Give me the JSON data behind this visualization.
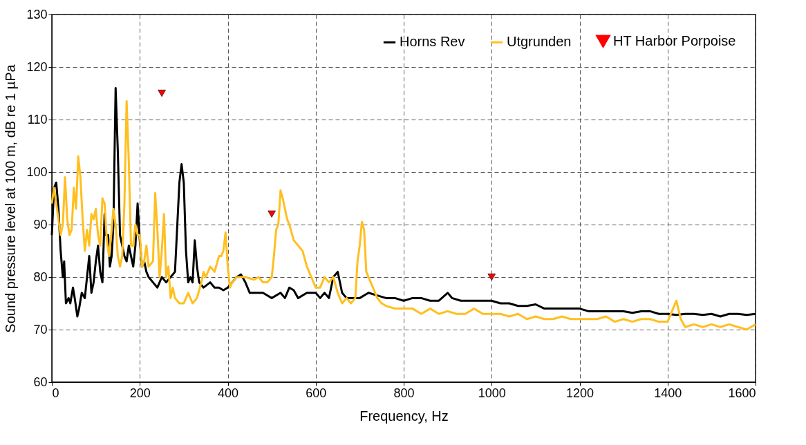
{
  "chart_data": {
    "type": "line",
    "xlabel": "Frequency, Hz",
    "ylabel": "Sound pressure level at 100 m, dB re 1 µPa",
    "xlim": [
      0,
      1600
    ],
    "xticks": [
      0,
      200,
      400,
      600,
      800,
      1000,
      1200,
      1400,
      1600
    ],
    "ylim": [
      60,
      130
    ],
    "yticks": [
      60,
      70,
      80,
      90,
      100,
      110,
      120,
      130
    ],
    "grid": true,
    "legend": "top right",
    "line_style": "solid",
    "series": [
      {
        "name": "Horns Rev",
        "color": "#000000",
        "x": [
          0,
          5,
          10,
          15,
          20,
          25,
          28,
          32,
          38,
          42,
          48,
          52,
          58,
          62,
          68,
          75,
          80,
          85,
          90,
          95,
          100,
          105,
          110,
          115,
          120,
          123,
          128,
          132,
          136,
          140,
          145,
          150,
          155,
          160,
          165,
          170,
          175,
          180,
          185,
          190,
          195,
          200,
          205,
          210,
          215,
          220,
          230,
          240,
          250,
          260,
          270,
          280,
          290,
          295,
          300,
          305,
          310,
          315,
          320,
          325,
          330,
          335,
          345,
          360,
          370,
          380,
          390,
          400,
          410,
          420,
          430,
          440,
          450,
          460,
          480,
          500,
          520,
          530,
          540,
          550,
          560,
          580,
          600,
          610,
          620,
          630,
          640,
          650,
          660,
          670,
          690,
          700,
          720,
          740,
          760,
          780,
          800,
          820,
          840,
          860,
          880,
          900,
          910,
          930,
          950,
          970,
          1000,
          1020,
          1040,
          1060,
          1080,
          1100,
          1120,
          1140,
          1160,
          1180,
          1200,
          1220,
          1240,
          1260,
          1280,
          1300,
          1320,
          1340,
          1360,
          1380,
          1400,
          1420,
          1440,
          1460,
          1480,
          1500,
          1520,
          1540,
          1560,
          1580,
          1600
        ],
        "values": [
          88,
          97,
          98,
          93,
          85,
          80,
          83,
          75,
          76,
          75,
          78,
          76,
          72.5,
          74,
          77,
          76,
          80,
          84,
          77,
          79,
          83,
          86,
          81,
          79,
          92,
          88,
          88,
          82,
          84,
          90,
          116,
          104,
          88,
          86,
          84,
          83,
          86,
          84,
          82,
          86,
          94,
          87,
          82,
          83,
          81,
          80,
          79,
          78,
          80,
          79,
          80,
          81,
          98,
          101.5,
          98,
          85,
          79,
          80,
          79,
          87,
          82,
          79,
          78,
          79,
          78,
          78,
          77.5,
          78,
          79,
          80,
          80.5,
          79,
          77,
          77,
          77,
          76,
          77,
          76,
          78,
          77.5,
          76,
          77,
          77,
          76,
          77,
          76,
          80,
          81,
          77,
          76,
          76,
          76,
          77,
          76.5,
          76,
          76,
          75.5,
          76,
          76,
          75.5,
          75.5,
          77,
          76,
          75.5,
          75.5,
          75.5,
          75.5,
          75,
          75,
          74.5,
          74.5,
          74.8,
          74,
          74,
          74,
          74,
          74,
          73.5,
          73.5,
          73.5,
          73.5,
          73.5,
          73.2,
          73.5,
          73.5,
          73,
          73,
          72.8,
          73,
          73,
          72.8,
          73,
          72.5,
          73,
          73,
          72.8,
          73
        ]
      },
      {
        "name": "Utgrunden",
        "color": "#ffbf1f",
        "x": [
          0,
          5,
          10,
          15,
          20,
          25,
          30,
          35,
          40,
          45,
          50,
          55,
          60,
          65,
          70,
          75,
          80,
          85,
          90,
          95,
          100,
          105,
          110,
          115,
          120,
          125,
          130,
          135,
          140,
          145,
          150,
          155,
          160,
          165,
          170,
          175,
          180,
          185,
          190,
          195,
          200,
          205,
          210,
          215,
          220,
          230,
          235,
          240,
          245,
          250,
          255,
          260,
          265,
          270,
          275,
          280,
          290,
          300,
          310,
          320,
          330,
          340,
          345,
          350,
          360,
          370,
          380,
          385,
          390,
          395,
          400,
          405,
          410,
          420,
          440,
          460,
          470,
          480,
          490,
          500,
          505,
          510,
          515,
          520,
          525,
          530,
          535,
          540,
          550,
          560,
          570,
          580,
          590,
          600,
          610,
          620,
          630,
          640,
          650,
          660,
          670,
          680,
          690,
          695,
          700,
          705,
          710,
          715,
          720,
          730,
          740,
          750,
          760,
          780,
          800,
          820,
          840,
          860,
          880,
          900,
          920,
          940,
          960,
          980,
          1000,
          1020,
          1040,
          1060,
          1080,
          1100,
          1120,
          1140,
          1160,
          1180,
          1200,
          1220,
          1240,
          1260,
          1280,
          1300,
          1320,
          1340,
          1360,
          1380,
          1400,
          1420,
          1430,
          1440,
          1460,
          1480,
          1500,
          1520,
          1540,
          1560,
          1580,
          1600
        ],
        "values": [
          94,
          97,
          94,
          91,
          88,
          90,
          99,
          91,
          88,
          89,
          97,
          93,
          103,
          99,
          91,
          85,
          89,
          86,
          92,
          91,
          93,
          88,
          86,
          95,
          94,
          87,
          84,
          88,
          93,
          90,
          84,
          82,
          84,
          94,
          113.5,
          102,
          86,
          86,
          90,
          88,
          88,
          82,
          83,
          86,
          82,
          83,
          96,
          89,
          80,
          85,
          92,
          80,
          82,
          76,
          78,
          76,
          75,
          75,
          77,
          75,
          76,
          79,
          81,
          80,
          82,
          81,
          84,
          84,
          85,
          88.5,
          82,
          78,
          79,
          80,
          80,
          79.5,
          80,
          79,
          79,
          80,
          84,
          89,
          90,
          96.5,
          95,
          93,
          91,
          90,
          87,
          86,
          85,
          82,
          80,
          78,
          78,
          80,
          79,
          80,
          77,
          75,
          76,
          75,
          76,
          83,
          86,
          90.5,
          89,
          81,
          80,
          78,
          76,
          75,
          74.5,
          74,
          74,
          74,
          73,
          74,
          73,
          73.5,
          73,
          73,
          74,
          73,
          73,
          73,
          72.5,
          73,
          72,
          72.5,
          72,
          72,
          72.5,
          72,
          72,
          72,
          72,
          72.5,
          71.5,
          72,
          71.5,
          72,
          72,
          71.5,
          71.5,
          75.5,
          72,
          70.5,
          71,
          70.5,
          71,
          70.5,
          71,
          70.5,
          70,
          71
        ]
      },
      {
        "name": "HT Harbor Porpoise",
        "color": "#ff0000",
        "type": "scatter",
        "marker": "triangle",
        "x": [
          250,
          500,
          1000
        ],
        "values": [
          115,
          92,
          80
        ]
      }
    ]
  }
}
